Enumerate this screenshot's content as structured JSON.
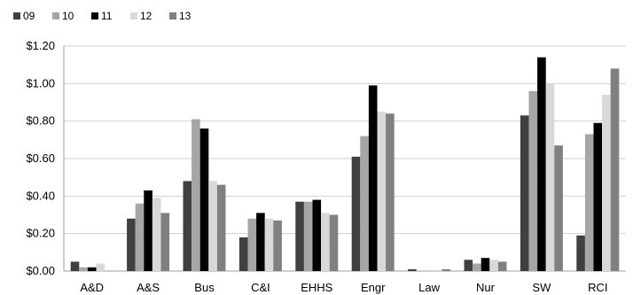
{
  "chart_data": {
    "type": "bar",
    "title": "",
    "xlabel": "",
    "ylabel": "",
    "ylim": [
      0,
      1.2
    ],
    "y_ticks": [
      "$0.00",
      "$0.20",
      "$0.40",
      "$0.60",
      "$0.80",
      "$1.00",
      "$1.20"
    ],
    "y_tick_values": [
      0,
      0.2,
      0.4,
      0.6,
      0.8,
      1.0,
      1.2
    ],
    "grid": true,
    "legend_position": "top-left",
    "categories": [
      "A&D",
      "A&S",
      "Bus",
      "C&I",
      "EHHS",
      "Engr",
      "Law",
      "Nur",
      "SW",
      "RCI"
    ],
    "series": [
      {
        "name": "09",
        "color": "#404040",
        "values": [
          0.05,
          0.28,
          0.48,
          0.18,
          0.37,
          0.61,
          0.01,
          0.06,
          0.83,
          0.19
        ]
      },
      {
        "name": "10",
        "color": "#a6a6a6",
        "values": [
          0.02,
          0.36,
          0.81,
          0.28,
          0.37,
          0.72,
          0.0,
          0.04,
          0.96,
          0.73
        ]
      },
      {
        "name": "11",
        "color": "#000000",
        "values": [
          0.02,
          0.43,
          0.76,
          0.31,
          0.38,
          0.99,
          0.0,
          0.07,
          1.14,
          0.79
        ]
      },
      {
        "name": "12",
        "color": "#d9d9d9",
        "values": [
          0.04,
          0.39,
          0.48,
          0.28,
          0.31,
          0.85,
          0.0,
          0.06,
          1.0,
          0.94
        ]
      },
      {
        "name": "13",
        "color": "#808080",
        "values": [
          0.0,
          0.31,
          0.46,
          0.27,
          0.3,
          0.84,
          0.01,
          0.05,
          0.67,
          1.08
        ]
      }
    ]
  }
}
